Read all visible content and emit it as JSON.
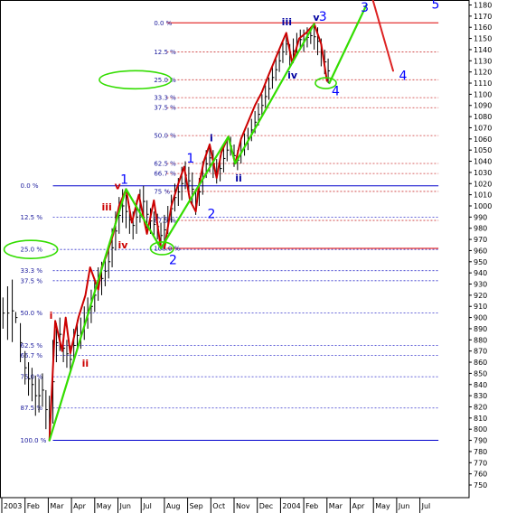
{
  "chart_data": {
    "type": "line",
    "title": "",
    "xlabel": "",
    "ylabel": "",
    "ylim": [
      745,
      1185
    ],
    "y_ticks": [
      750,
      760,
      770,
      780,
      790,
      800,
      810,
      820,
      830,
      840,
      850,
      860,
      870,
      880,
      890,
      900,
      910,
      920,
      930,
      940,
      950,
      960,
      970,
      980,
      990,
      1000,
      1010,
      1020,
      1030,
      1040,
      1050,
      1060,
      1070,
      1080,
      1090,
      1100,
      1110,
      1120,
      1130,
      1140,
      1150,
      1160,
      1170,
      1180
    ],
    "y_axis_position": "right",
    "x_ticks": [
      {
        "label": "2003",
        "m": 0
      },
      {
        "label": "Feb",
        "m": 1
      },
      {
        "label": "Mar",
        "m": 2
      },
      {
        "label": "Apr",
        "m": 3
      },
      {
        "label": "May",
        "m": 4
      },
      {
        "label": "Jun",
        "m": 5
      },
      {
        "label": "Jul",
        "m": 6
      },
      {
        "label": "Aug",
        "m": 7
      },
      {
        "label": "Sep",
        "m": 8
      },
      {
        "label": "Oct",
        "m": 9
      },
      {
        "label": "Nov",
        "m": 10
      },
      {
        "label": "Dec",
        "m": 11
      },
      {
        "label": "2004",
        "m": 12
      },
      {
        "label": "Feb",
        "m": 13
      },
      {
        "label": "Mar",
        "m": 14
      },
      {
        "label": "Apr",
        "m": 15
      },
      {
        "label": "May",
        "m": 16
      },
      {
        "label": "Jun",
        "m": 17
      },
      {
        "label": "Jul",
        "m": 18
      }
    ],
    "price_bars": [
      {
        "m": 0.05,
        "low": 890,
        "high": 918
      },
      {
        "m": 0.25,
        "low": 880,
        "high": 928
      },
      {
        "m": 0.45,
        "low": 878,
        "high": 934
      },
      {
        "m": 0.6,
        "low": 895,
        "high": 905
      },
      {
        "m": 0.8,
        "low": 860,
        "high": 895
      },
      {
        "m": 1.0,
        "low": 840,
        "high": 870
      },
      {
        "m": 1.15,
        "low": 830,
        "high": 860
      },
      {
        "m": 1.3,
        "low": 825,
        "high": 855
      },
      {
        "m": 1.45,
        "low": 812,
        "high": 848
      },
      {
        "m": 1.6,
        "low": 815,
        "high": 845
      },
      {
        "m": 1.75,
        "low": 820,
        "high": 850
      },
      {
        "m": 1.9,
        "low": 800,
        "high": 835
      },
      {
        "m": 2.05,
        "low": 790,
        "high": 830
      },
      {
        "m": 2.2,
        "low": 805,
        "high": 880
      },
      {
        "m": 2.35,
        "low": 860,
        "high": 895
      },
      {
        "m": 2.5,
        "low": 870,
        "high": 900
      },
      {
        "m": 2.65,
        "low": 860,
        "high": 885
      },
      {
        "m": 2.8,
        "low": 855,
        "high": 880
      },
      {
        "m": 2.95,
        "low": 850,
        "high": 875
      },
      {
        "m": 3.1,
        "low": 860,
        "high": 890
      },
      {
        "m": 3.25,
        "low": 870,
        "high": 898
      },
      {
        "m": 3.4,
        "low": 872,
        "high": 900
      },
      {
        "m": 3.55,
        "low": 880,
        "high": 910
      },
      {
        "m": 3.7,
        "low": 890,
        "high": 918
      },
      {
        "m": 3.85,
        "low": 895,
        "high": 925
      },
      {
        "m": 4.0,
        "low": 905,
        "high": 935
      },
      {
        "m": 4.15,
        "low": 915,
        "high": 945
      },
      {
        "m": 4.3,
        "low": 920,
        "high": 950
      },
      {
        "m": 4.45,
        "low": 928,
        "high": 955
      },
      {
        "m": 4.6,
        "low": 935,
        "high": 965
      },
      {
        "m": 4.75,
        "low": 945,
        "high": 980
      },
      {
        "m": 4.9,
        "low": 960,
        "high": 995
      },
      {
        "m": 5.05,
        "low": 975,
        "high": 1008
      },
      {
        "m": 5.2,
        "low": 985,
        "high": 1015
      },
      {
        "m": 5.35,
        "low": 980,
        "high": 1010
      },
      {
        "m": 5.5,
        "low": 975,
        "high": 1000
      },
      {
        "m": 5.65,
        "low": 970,
        "high": 995
      },
      {
        "m": 5.8,
        "low": 975,
        "high": 1005
      },
      {
        "m": 5.95,
        "low": 985,
        "high": 1015
      },
      {
        "m": 6.1,
        "low": 990,
        "high": 1018
      },
      {
        "m": 6.25,
        "low": 980,
        "high": 1005
      },
      {
        "m": 6.4,
        "low": 975,
        "high": 998
      },
      {
        "m": 6.55,
        "low": 972,
        "high": 995
      },
      {
        "m": 6.7,
        "low": 970,
        "high": 993
      },
      {
        "m": 6.85,
        "low": 962,
        "high": 985
      },
      {
        "m": 7.0,
        "low": 965,
        "high": 992
      },
      {
        "m": 7.15,
        "low": 975,
        "high": 1000
      },
      {
        "m": 7.3,
        "low": 985,
        "high": 1010
      },
      {
        "m": 7.45,
        "low": 995,
        "high": 1020
      },
      {
        "m": 7.6,
        "low": 1000,
        "high": 1025
      },
      {
        "m": 7.75,
        "low": 1005,
        "high": 1035
      },
      {
        "m": 7.9,
        "low": 1015,
        "high": 1040
      },
      {
        "m": 8.05,
        "low": 1010,
        "high": 1035
      },
      {
        "m": 8.2,
        "low": 1000,
        "high": 1030
      },
      {
        "m": 8.35,
        "low": 992,
        "high": 1015
      },
      {
        "m": 8.5,
        "low": 1000,
        "high": 1025
      },
      {
        "m": 8.65,
        "low": 1010,
        "high": 1040
      },
      {
        "m": 8.8,
        "low": 1025,
        "high": 1050
      },
      {
        "m": 8.95,
        "low": 1030,
        "high": 1056
      },
      {
        "m": 9.1,
        "low": 1025,
        "high": 1050
      },
      {
        "m": 9.25,
        "low": 1020,
        "high": 1042
      },
      {
        "m": 9.4,
        "low": 1022,
        "high": 1045
      },
      {
        "m": 9.55,
        "low": 1030,
        "high": 1055
      },
      {
        "m": 9.7,
        "low": 1040,
        "high": 1060
      },
      {
        "m": 9.85,
        "low": 1045,
        "high": 1062
      },
      {
        "m": 10.0,
        "low": 1035,
        "high": 1055
      },
      {
        "m": 10.15,
        "low": 1032,
        "high": 1050
      },
      {
        "m": 10.3,
        "low": 1038,
        "high": 1060
      },
      {
        "m": 10.45,
        "low": 1045,
        "high": 1065
      },
      {
        "m": 10.6,
        "low": 1050,
        "high": 1070
      },
      {
        "m": 10.75,
        "low": 1058,
        "high": 1078
      },
      {
        "m": 10.9,
        "low": 1065,
        "high": 1085
      },
      {
        "m": 11.05,
        "low": 1072,
        "high": 1092
      },
      {
        "m": 11.2,
        "low": 1080,
        "high": 1100
      },
      {
        "m": 11.35,
        "low": 1088,
        "high": 1108
      },
      {
        "m": 11.5,
        "low": 1095,
        "high": 1115
      },
      {
        "m": 11.65,
        "low": 1105,
        "high": 1125
      },
      {
        "m": 11.8,
        "low": 1112,
        "high": 1132
      },
      {
        "m": 11.95,
        "low": 1120,
        "high": 1140
      },
      {
        "m": 12.1,
        "low": 1128,
        "high": 1148
      },
      {
        "m": 12.25,
        "low": 1135,
        "high": 1155
      },
      {
        "m": 12.4,
        "low": 1125,
        "high": 1145
      },
      {
        "m": 12.55,
        "low": 1128,
        "high": 1150
      },
      {
        "m": 12.7,
        "low": 1135,
        "high": 1155
      },
      {
        "m": 12.85,
        "low": 1140,
        "high": 1158
      },
      {
        "m": 13.0,
        "low": 1138,
        "high": 1158
      },
      {
        "m": 13.15,
        "low": 1142,
        "high": 1160
      },
      {
        "m": 13.3,
        "low": 1145,
        "high": 1160
      },
      {
        "m": 13.45,
        "low": 1140,
        "high": 1163
      },
      {
        "m": 13.6,
        "low": 1135,
        "high": 1160
      },
      {
        "m": 13.75,
        "low": 1125,
        "high": 1150
      },
      {
        "m": 13.9,
        "low": 1118,
        "high": 1140
      },
      {
        "m": 14.05,
        "low": 1110,
        "high": 1132
      }
    ],
    "series": [
      {
        "color": "#cc0000",
        "points": [
          [
            2.05,
            790
          ],
          [
            2.3,
            897
          ],
          [
            2.6,
            870
          ],
          [
            2.75,
            900
          ],
          [
            2.95,
            868
          ],
          [
            3.3,
            900
          ],
          [
            3.6,
            920
          ],
          [
            3.8,
            945
          ],
          [
            4.15,
            925
          ],
          [
            4.3,
            945
          ],
          [
            4.5,
            955
          ],
          [
            4.8,
            975
          ],
          [
            5.05,
            1000
          ],
          [
            5.35,
            1015
          ],
          [
            5.6,
            985
          ],
          [
            5.9,
            1010
          ],
          [
            6.25,
            975
          ],
          [
            6.55,
            1005
          ],
          [
            6.85,
            962
          ]
        ]
      },
      {
        "color": "#cc0000",
        "points": [
          [
            7.0,
            962
          ],
          [
            7.3,
            1000
          ],
          [
            7.6,
            1020
          ],
          [
            7.85,
            1035
          ],
          [
            8.1,
            1005
          ],
          [
            8.35,
            995
          ],
          [
            8.5,
            1020
          ],
          [
            8.7,
            1040
          ],
          [
            8.95,
            1055
          ],
          [
            9.25,
            1025
          ],
          [
            9.45,
            1048
          ],
          [
            9.75,
            1062
          ],
          [
            10.05,
            1038
          ],
          [
            10.3,
            1060
          ],
          [
            10.6,
            1075
          ],
          [
            10.9,
            1090
          ],
          [
            11.2,
            1102
          ],
          [
            11.5,
            1118
          ],
          [
            11.8,
            1133
          ],
          [
            12.1,
            1148
          ],
          [
            12.25,
            1155
          ],
          [
            12.5,
            1128
          ],
          [
            12.8,
            1150
          ],
          [
            13.1,
            1155
          ],
          [
            13.45,
            1163
          ],
          [
            13.75,
            1145
          ],
          [
            14.0,
            1112
          ]
        ]
      },
      {
        "color": "#33dd00",
        "points": [
          [
            2.05,
            790
          ],
          [
            5.35,
            1015
          ],
          [
            6.85,
            962
          ],
          [
            9.75,
            1062
          ],
          [
            10.05,
            1038
          ],
          [
            13.45,
            1163
          ]
        ]
      },
      {
        "color": "#33dd00",
        "points": [
          [
            14.1,
            1110
          ],
          [
            15.7,
            1180
          ]
        ]
      },
      {
        "color": "#dd2222",
        "points": [
          [
            15.9,
            1190
          ],
          [
            16.85,
            1121
          ]
        ]
      }
    ],
    "fib_sets": [
      {
        "high": 1164,
        "low": 962,
        "x_start_m": 7.1,
        "x_end_m": 18.8,
        "label_x_m": 6.55,
        "levels": [
          {
            "label": "0.0 %",
            "value": 1164
          },
          {
            "label": "12.5 %",
            "value": 1138
          },
          {
            "label": "25.0 %",
            "value": 1113
          },
          {
            "label": "33.3 %",
            "value": 1097
          },
          {
            "label": "37.5 %",
            "value": 1088
          },
          {
            "label": "50.0 %",
            "value": 1063
          },
          {
            "label": "62.5 %",
            "value": 1038
          },
          {
            "label": "66.7 %",
            "value": 1029
          },
          {
            "label": "75 %",
            "value": 1013
          },
          {
            "label": "87.5 %",
            "value": 987
          },
          {
            "label": "100.0 %",
            "value": 962
          }
        ]
      },
      {
        "high": 1018,
        "low": 790,
        "x_start_m": 2.2,
        "x_end_m": 18.8,
        "label_x_m": 0.8,
        "levels": [
          {
            "label": "0.0 %",
            "value": 1018
          },
          {
            "label": "12.5 %",
            "value": 990
          },
          {
            "label": "25.0 %",
            "value": 961
          },
          {
            "label": "33.3 %",
            "value": 942
          },
          {
            "label": "37.5 %",
            "value": 933
          },
          {
            "label": "50.0 %",
            "value": 904
          },
          {
            "label": "62.5 %",
            "value": 875
          },
          {
            "label": "66.7 %",
            "value": 866
          },
          {
            "label": "75.0 %",
            "value": 847
          },
          {
            "label": "87.5 %",
            "value": 819
          },
          {
            "label": "100.0 %",
            "value": 790
          }
        ]
      }
    ],
    "wave_labels": [
      {
        "text": "5",
        "m": 18.5,
        "y": 1181,
        "style": "blue"
      },
      {
        "text": "3",
        "m": 15.45,
        "y": 1178,
        "style": "blue"
      },
      {
        "text": "v",
        "m": 13.4,
        "y": 1170,
        "style": "blue-s"
      },
      {
        "text": "3",
        "m": 13.65,
        "y": 1170,
        "style": "blue"
      },
      {
        "text": "iii",
        "m": 12.05,
        "y": 1166,
        "style": "blue-s"
      },
      {
        "text": "iv",
        "m": 12.3,
        "y": 1118,
        "style": "blue-s"
      },
      {
        "text": "4",
        "m": 14.2,
        "y": 1103,
        "style": "blue"
      },
      {
        "text": "4",
        "m": 17.1,
        "y": 1117,
        "style": "blue"
      },
      {
        "text": "i",
        "m": 8.95,
        "y": 1062,
        "style": "blue-s"
      },
      {
        "text": "ii",
        "m": 10.05,
        "y": 1026,
        "style": "blue-s"
      },
      {
        "text": "1",
        "m": 7.95,
        "y": 1043,
        "style": "blue"
      },
      {
        "text": "2",
        "m": 8.85,
        "y": 993,
        "style": "blue"
      },
      {
        "text": "2",
        "m": 7.2,
        "y": 952,
        "style": "blue"
      },
      {
        "text": "v",
        "m": 4.85,
        "y": 1019,
        "style": "red-s"
      },
      {
        "text": "1",
        "m": 5.1,
        "y": 1024,
        "style": "blue"
      },
      {
        "text": "iii",
        "m": 4.3,
        "y": 1000,
        "style": "red-s"
      },
      {
        "text": "iv",
        "m": 5.0,
        "y": 966,
        "style": "red-s"
      },
      {
        "text": "i",
        "m": 2.05,
        "y": 903,
        "style": "red-s"
      },
      {
        "text": "ii",
        "m": 3.45,
        "y": 860,
        "style": "red-s"
      }
    ],
    "ellipses": [
      {
        "cx_m": 5.75,
        "cy": 1113,
        "rx_m": 1.55,
        "ry": 10
      },
      {
        "cx_m": 1.25,
        "cy": 961,
        "rx_m": 1.15,
        "ry": 10
      },
      {
        "cx_m": 6.9,
        "cy": 962,
        "rx_m": 0.5,
        "ry": 7
      },
      {
        "cx_m": 13.95,
        "cy": 1110,
        "rx_m": 0.45,
        "ry": 6
      }
    ]
  }
}
